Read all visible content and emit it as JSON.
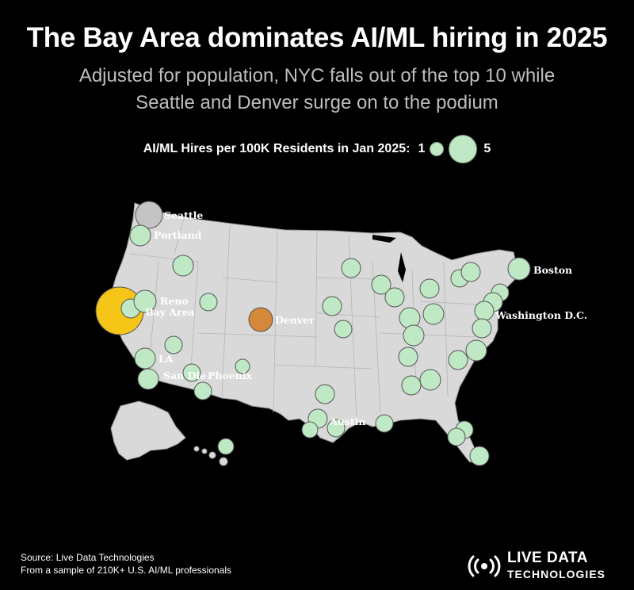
{
  "header": {
    "title": "The Bay Area dominates AI/ML hiring in 2025",
    "subtitle_line1": "Adjusted for population, NYC falls out of the top 10 while",
    "subtitle_line2": "Seattle and Denver surge on to the podium"
  },
  "legend": {
    "label": "AI/ML Hires per 100K Residents in Jan 2025:",
    "min_label": "1",
    "max_label": "5"
  },
  "colors": {
    "background": "#000000",
    "land": "#d9d9d9",
    "bubble_default": "#bfe8c5",
    "bay_area": "#f5c518",
    "seattle": "#c4c4c4",
    "denver": "#d4883a"
  },
  "map": {
    "labels": {
      "seattle": "Seattle",
      "portland": "Portland",
      "reno": "Reno",
      "bay_area": "Bay Area",
      "denver": "Denver",
      "la": "LA",
      "san_diego": "San Die",
      "phoenix": "Phoenix",
      "austin": "Austin",
      "boston": "Boston",
      "washington": "Washington D.C."
    }
  },
  "footer": {
    "source_line1": "Source: Live Data Technologies",
    "source_line2": "From a sample of 210K+ U.S. AI/ML professionals",
    "brand_line1": "LIVE DATA",
    "brand_line2": "TECHNOLOGIES"
  }
}
